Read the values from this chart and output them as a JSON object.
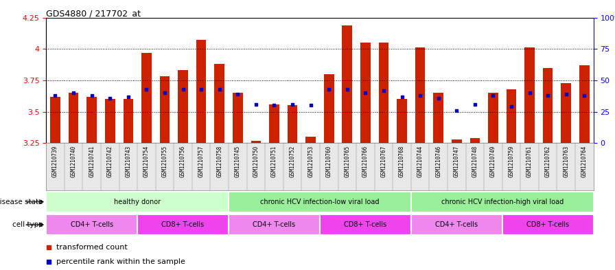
{
  "title": "GDS4880 / 217702_at",
  "samples": [
    "GSM1210739",
    "GSM1210740",
    "GSM1210741",
    "GSM1210742",
    "GSM1210743",
    "GSM1210754",
    "GSM1210755",
    "GSM1210756",
    "GSM1210757",
    "GSM1210758",
    "GSM1210745",
    "GSM1210750",
    "GSM1210751",
    "GSM1210752",
    "GSM1210753",
    "GSM1210760",
    "GSM1210765",
    "GSM1210766",
    "GSM1210767",
    "GSM1210768",
    "GSM1210744",
    "GSM1210746",
    "GSM1210747",
    "GSM1210748",
    "GSM1210749",
    "GSM1210759",
    "GSM1210761",
    "GSM1210762",
    "GSM1210763",
    "GSM1210764"
  ],
  "bar_values": [
    3.62,
    3.65,
    3.62,
    3.6,
    3.6,
    3.97,
    3.78,
    3.83,
    4.07,
    3.88,
    3.65,
    3.27,
    3.56,
    3.55,
    3.3,
    3.8,
    4.19,
    4.05,
    4.05,
    3.6,
    4.01,
    3.65,
    3.28,
    3.29,
    3.65,
    3.68,
    4.01,
    3.85,
    3.73,
    3.87
  ],
  "dot_values": [
    3.63,
    3.65,
    3.63,
    3.61,
    3.62,
    3.68,
    3.65,
    3.68,
    3.68,
    3.68,
    3.64,
    3.56,
    3.55,
    3.56,
    3.55,
    3.68,
    3.68,
    3.65,
    3.67,
    3.62,
    3.63,
    3.61,
    3.51,
    3.56,
    3.63,
    3.54,
    3.65,
    3.63,
    3.64,
    3.63
  ],
  "ylim": [
    3.25,
    4.25
  ],
  "yticks": [
    3.25,
    3.5,
    3.75,
    4.0,
    4.25
  ],
  "y2lim": [
    0,
    100
  ],
  "y2ticks": [
    0,
    25,
    50,
    75,
    100
  ],
  "bar_color": "#CC2200",
  "dot_color": "#0000CC",
  "bar_width": 0.55,
  "disease_state_groups": [
    {
      "label": "healthy donor",
      "start": 0,
      "end": 9,
      "color": "#CCFFCC"
    },
    {
      "label": "chronic HCV infection-low viral load",
      "start": 10,
      "end": 19,
      "color": "#99EE99"
    },
    {
      "label": "chronic HCV infection-high viral load",
      "start": 20,
      "end": 29,
      "color": "#99EE99"
    }
  ],
  "cell_type_groups": [
    {
      "label": "CD4+ T-cells",
      "start": 0,
      "end": 4,
      "color": "#EE88EE"
    },
    {
      "label": "CD8+ T-cells",
      "start": 5,
      "end": 9,
      "color": "#EE44EE"
    },
    {
      "label": "CD4+ T-cells",
      "start": 10,
      "end": 14,
      "color": "#EE88EE"
    },
    {
      "label": "CD8+ T-cells",
      "start": 15,
      "end": 19,
      "color": "#EE44EE"
    },
    {
      "label": "CD4+ T-cells",
      "start": 20,
      "end": 24,
      "color": "#EE88EE"
    },
    {
      "label": "CD8+ T-cells",
      "start": 25,
      "end": 29,
      "color": "#EE44EE"
    }
  ],
  "disease_label": "disease state",
  "cell_label": "cell type",
  "legend_items": [
    {
      "label": "transformed count",
      "color": "#CC2200"
    },
    {
      "label": "percentile rank within the sample",
      "color": "#0000CC"
    }
  ],
  "bg_color": "#E8E8E8",
  "plot_bg": "#FFFFFF"
}
